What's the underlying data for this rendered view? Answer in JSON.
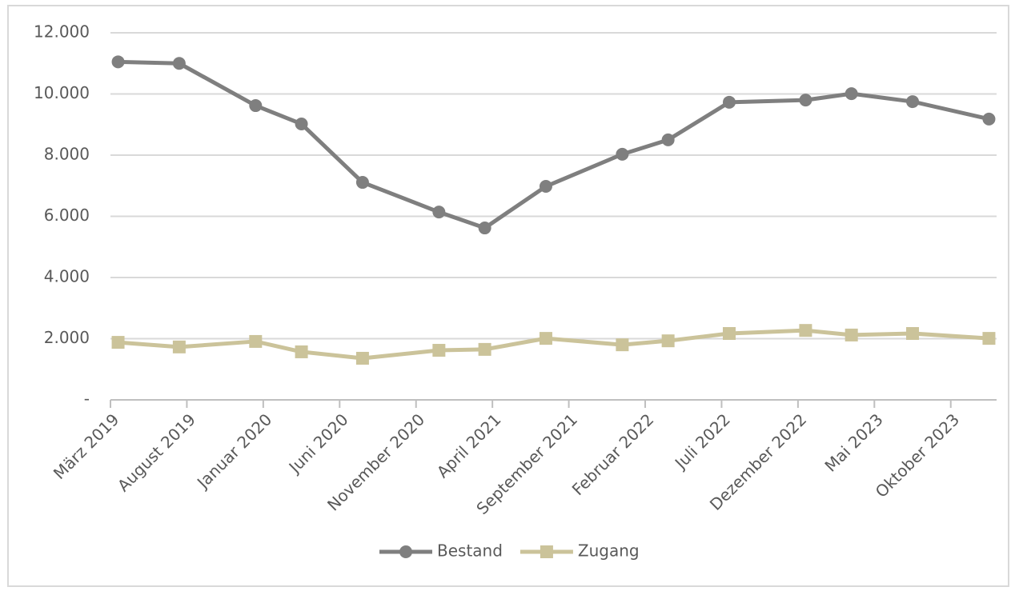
{
  "chart_data": {
    "type": "line",
    "x": [
      "2019-03",
      "2019-07",
      "2019-12",
      "2020-03",
      "2020-07",
      "2020-12",
      "2021-03",
      "2021-07",
      "2021-12",
      "2022-03",
      "2022-07",
      "2022-12",
      "2023-03",
      "2023-07",
      "2023-12"
    ],
    "series": [
      {
        "name": "Bestand",
        "color": "#7f7f7f",
        "marker": "circle",
        "values": [
          11050,
          11000,
          9620,
          9020,
          7110,
          6140,
          5620,
          6980,
          8030,
          8500,
          9730,
          9800,
          10010,
          9750,
          9180
        ]
      },
      {
        "name": "Zugang",
        "color": "#cbc39a",
        "marker": "square",
        "values": [
          1880,
          1730,
          1910,
          1570,
          1360,
          1620,
          1650,
          2010,
          1800,
          1930,
          2170,
          2270,
          2120,
          2170,
          2010
        ]
      }
    ],
    "xlim": [
      "2019-03",
      "2024-01"
    ],
    "xticks": [
      {
        "value": "2019-03",
        "label": "März 2019"
      },
      {
        "value": "2019-08",
        "label": "August 2019"
      },
      {
        "value": "2020-01",
        "label": "Januar 2020"
      },
      {
        "value": "2020-06",
        "label": "Juni 2020"
      },
      {
        "value": "2020-11",
        "label": "November 2020"
      },
      {
        "value": "2021-04",
        "label": "April 2021"
      },
      {
        "value": "2021-09",
        "label": "September 2021"
      },
      {
        "value": "2022-02",
        "label": "Februar 2022"
      },
      {
        "value": "2022-07",
        "label": "Juli 2022"
      },
      {
        "value": "2022-12",
        "label": "Dezember 2022"
      },
      {
        "value": "2023-05",
        "label": "Mai 2023"
      },
      {
        "value": "2023-10",
        "label": "Oktober 2023"
      }
    ],
    "ylim": [
      0,
      12000
    ],
    "yticks": [
      {
        "value": 0,
        "label": "-"
      },
      {
        "value": 2000,
        "label": "2.000"
      },
      {
        "value": 4000,
        "label": "4.000"
      },
      {
        "value": 6000,
        "label": "6.000"
      },
      {
        "value": 8000,
        "label": "8.000"
      },
      {
        "value": 10000,
        "label": "10.000"
      },
      {
        "value": 12000,
        "label": "12.000"
      }
    ],
    "grid": true,
    "legend": "bottom"
  }
}
